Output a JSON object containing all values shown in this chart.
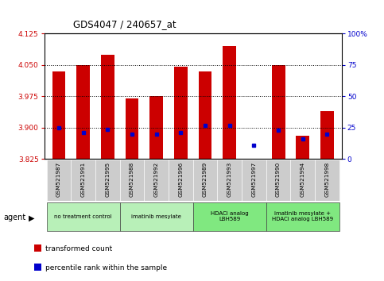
{
  "title": "GDS4047 / 240657_at",
  "samples": [
    "GSM521987",
    "GSM521991",
    "GSM521995",
    "GSM521988",
    "GSM521992",
    "GSM521996",
    "GSM521989",
    "GSM521993",
    "GSM521997",
    "GSM521990",
    "GSM521994",
    "GSM521998"
  ],
  "bar_values": [
    4.035,
    4.05,
    4.075,
    3.97,
    3.975,
    4.045,
    4.035,
    4.095,
    3.825,
    4.05,
    3.88,
    3.94
  ],
  "percentile_values": [
    3.9,
    3.888,
    3.895,
    3.885,
    3.885,
    3.887,
    3.905,
    3.905,
    3.858,
    3.893,
    3.873,
    3.884
  ],
  "ylim_left": [
    3.825,
    4.125
  ],
  "yticks_left": [
    3.825,
    3.9,
    3.975,
    4.05,
    4.125
  ],
  "yticks_right": [
    0,
    25,
    50,
    75,
    100
  ],
  "ytick_right_labels": [
    "0",
    "25",
    "50",
    "75",
    "100%"
  ],
  "hlines": [
    3.9,
    3.975,
    4.05
  ],
  "bar_color": "#cc0000",
  "percentile_color": "#0000cc",
  "bar_width": 0.55,
  "group_labels": [
    "no treatment control",
    "imatinib mesylate",
    "HDACi analog\nLBH589",
    "imatinib mesylate +\nHDACi analog LBH589"
  ],
  "group_ranges": [
    [
      0,
      2
    ],
    [
      3,
      5
    ],
    [
      6,
      8
    ],
    [
      9,
      11
    ]
  ],
  "group_colors": [
    "#b8f0b8",
    "#b8f0b8",
    "#80e880",
    "#80e880"
  ],
  "legend_red": "transformed count",
  "legend_blue": "percentile rank within the sample",
  "agent_label": "agent",
  "left_tick_color": "#cc0000",
  "right_tick_color": "#0000cc"
}
